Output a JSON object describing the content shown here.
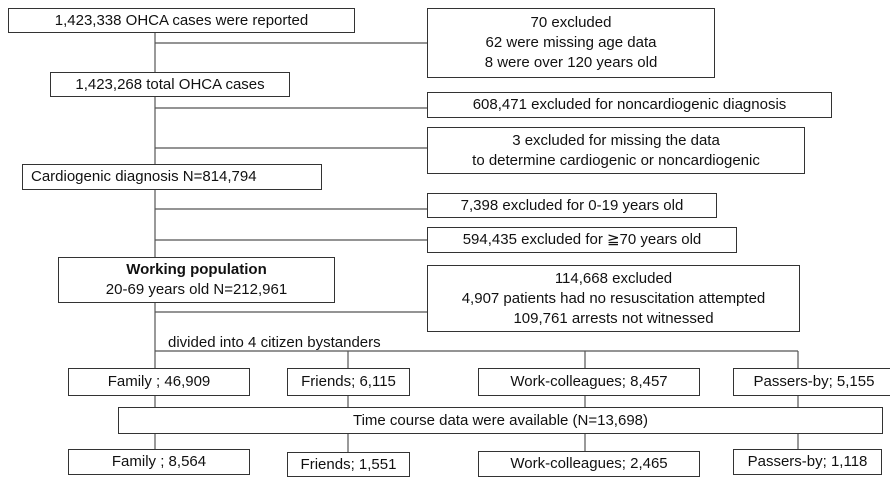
{
  "boxes": [
    {
      "lines": [
        "1,423,338 OHCA cases were reported"
      ]
    },
    {
      "lines": [
        "70 excluded",
        "62 were missing age data",
        "8 were over 120 years old"
      ]
    },
    {
      "lines": [
        "1,423,268 total OHCA cases"
      ]
    },
    {
      "lines": [
        "608,471 excluded for noncardiogenic diagnosis"
      ]
    },
    {
      "lines": [
        "3 excluded for missing the data",
        "to determine cardiogenic or noncardiogenic"
      ]
    },
    {
      "lines": [
        "Cardiogenic diagnosis   N=814,794"
      ]
    },
    {
      "lines": [
        "7,398 excluded for 0-19 years old"
      ]
    },
    {
      "lines": [
        "594,435 excluded for ≧70 years old"
      ]
    },
    {
      "lines": [
        "Working population",
        "20-69 years old   N=212,961"
      ]
    },
    {
      "lines": [
        "114,668 excluded",
        "4,907 patients had no resuscitation attempted",
        "109,761 arrests not witnessed"
      ]
    },
    {
      "lines": [
        "Family ; 46,909"
      ]
    },
    {
      "lines": [
        "Friends; 6,115"
      ]
    },
    {
      "lines": [
        "Work-colleagues; 8,457"
      ]
    },
    {
      "lines": [
        "Passers-by; 5,155"
      ]
    },
    {
      "lines": [
        "Time course data were available (N=13,698)"
      ]
    },
    {
      "lines": [
        "Family ; 8,564"
      ]
    },
    {
      "lines": [
        "Friends; 1,551"
      ]
    },
    {
      "lines": [
        "Work-colleagues; 2,465"
      ]
    },
    {
      "lines": [
        "Passers-by; 1,118"
      ]
    }
  ],
  "note": "divided into 4 citizen bystanders"
}
